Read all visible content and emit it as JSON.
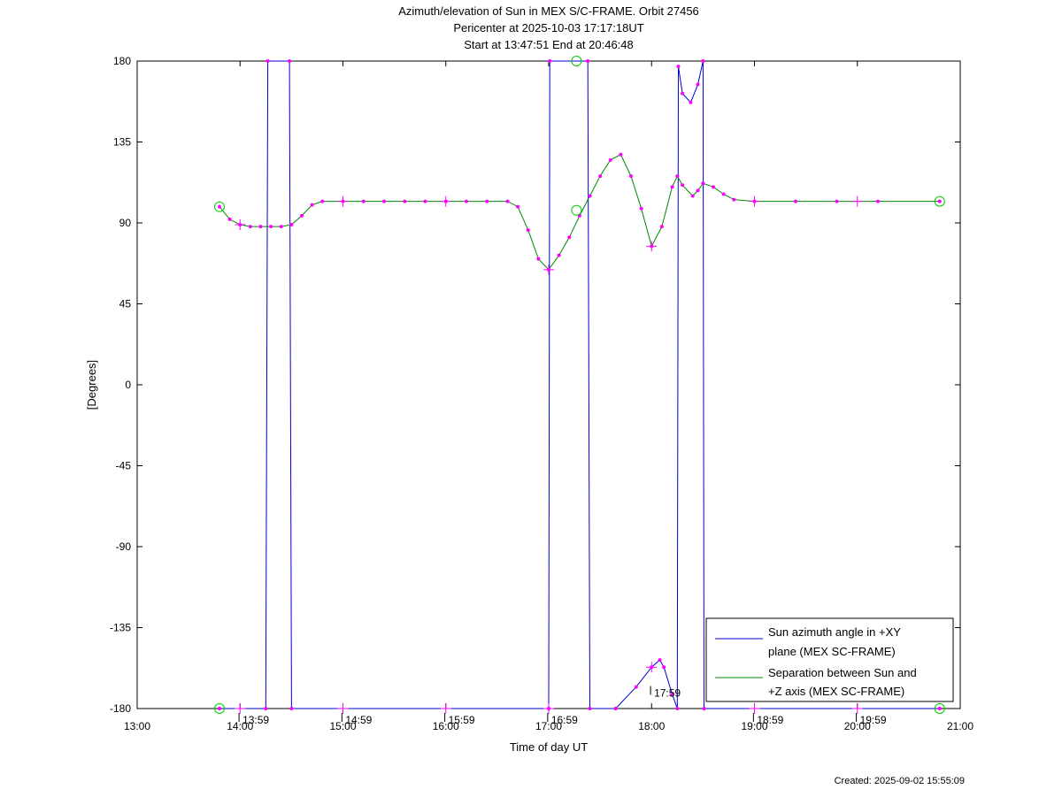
{
  "footer": {
    "created": "Created: 2025-09-02 15:55:09"
  },
  "chart_data": {
    "type": "line",
    "title": "Azimuth/elevation of Sun in MEX S/C-FRAME.  Orbit 27456",
    "subtitle_lines": [
      "Pericenter at 2025-10-03 17:17:18UT",
      "Start at 13:47:51 End at 20:46:48"
    ],
    "xlabel": "Time of day UT",
    "ylabel": "[Degrees]",
    "xlim": [
      13.0,
      21.0
    ],
    "ylim": [
      -180,
      180
    ],
    "x_ticks": [
      13,
      14,
      15,
      16,
      17,
      18,
      19,
      20,
      21
    ],
    "x_tick_labels": [
      "13:00",
      "14:00",
      "15:00",
      "16:00",
      "17:00",
      "18:00",
      "19:00",
      "20:00",
      "21:00"
    ],
    "y_ticks": [
      180,
      135,
      90,
      45,
      0,
      -45,
      -90,
      -135,
      -180
    ],
    "y_tick_labels": [
      "180",
      "135",
      "90",
      "45",
      "0",
      "-45",
      "-90",
      "-135",
      "-180"
    ],
    "grid": false,
    "legend_position": "bottom-right",
    "annotations": [
      {
        "text": "13:59",
        "x": 13.99,
        "y": -180
      },
      {
        "text": "14:59",
        "x": 14.99,
        "y": -180
      },
      {
        "text": "15:59",
        "x": 15.99,
        "y": -180
      },
      {
        "text": "16:59",
        "x": 16.99,
        "y": -180
      },
      {
        "text": "17:59",
        "x": 17.99,
        "y": -165
      },
      {
        "text": "18:59",
        "x": 18.99,
        "y": -180
      },
      {
        "text": "19:59",
        "x": 19.99,
        "y": -180
      }
    ],
    "series": [
      {
        "name": "Sun azimuth angle in +XY plane (MEX SC-FRAME)",
        "color": "#0000cc",
        "x": [
          13.8,
          14.25,
          14.27,
          14.48,
          14.5,
          17.0,
          17.01,
          17.38,
          17.4,
          17.65,
          17.85,
          18.0,
          18.08,
          18.12,
          18.2,
          18.25,
          18.26,
          18.3,
          18.38,
          18.45,
          18.5,
          18.51,
          20.8
        ],
        "values": [
          -180,
          -180,
          180,
          180,
          -180,
          -180,
          180,
          180,
          -180,
          -180,
          -168,
          -157,
          -153,
          -157,
          -172,
          -180,
          177,
          162,
          157,
          167,
          180,
          -180,
          -180
        ]
      },
      {
        "name": "Separation between Sun and +Z axis (MEX SC-FRAME)",
        "color": "#008800",
        "x": [
          13.8,
          13.9,
          14.0,
          14.1,
          14.2,
          14.3,
          14.4,
          14.5,
          14.6,
          14.7,
          14.8,
          15.0,
          15.2,
          15.4,
          15.6,
          15.8,
          16.0,
          16.2,
          16.4,
          16.6,
          16.7,
          16.8,
          16.9,
          17.0,
          17.1,
          17.2,
          17.3,
          17.4,
          17.5,
          17.6,
          17.7,
          17.8,
          17.9,
          18.0,
          18.1,
          18.2,
          18.25,
          18.3,
          18.4,
          18.45,
          18.5,
          18.6,
          18.7,
          18.8,
          19.0,
          19.4,
          19.8,
          20.2,
          20.8
        ],
        "values": [
          99,
          92,
          89,
          88,
          88,
          88,
          88,
          89,
          94,
          100,
          102,
          102,
          102,
          102,
          102,
          102,
          102,
          102,
          102,
          102,
          99,
          86,
          70,
          64,
          72,
          82,
          94,
          105,
          116,
          125,
          128,
          116,
          98,
          77,
          88,
          110,
          116,
          111,
          105,
          108,
          112,
          110,
          106,
          103,
          102,
          102,
          102,
          102,
          102
        ]
      }
    ],
    "markers": {
      "dot_color": "#ff00ff",
      "circle_color": "#00cc00",
      "circles": [
        {
          "x": 13.8,
          "y": 99
        },
        {
          "x": 13.8,
          "y": -180
        },
        {
          "x": 20.8,
          "y": 102
        },
        {
          "x": 20.8,
          "y": -180
        },
        {
          "x": 17.27,
          "y": 97
        },
        {
          "x": 17.27,
          "y": 180
        }
      ],
      "crosses": [
        {
          "x": 14.0,
          "y": 89
        },
        {
          "x": 17.0,
          "y": 64
        },
        {
          "x": 18.0,
          "y": 77
        },
        {
          "x": 18.0,
          "y": -157
        },
        {
          "x": 15.0,
          "y": 102
        },
        {
          "x": 16.0,
          "y": 102
        },
        {
          "x": 19.0,
          "y": 102
        },
        {
          "x": 20.0,
          "y": 102
        },
        {
          "x": 14.0,
          "y": -180
        },
        {
          "x": 15.0,
          "y": -180
        },
        {
          "x": 16.0,
          "y": -180
        },
        {
          "x": 17.0,
          "y": -180
        },
        {
          "x": 19.0,
          "y": -180
        },
        {
          "x": 20.0,
          "y": -180
        }
      ]
    }
  }
}
